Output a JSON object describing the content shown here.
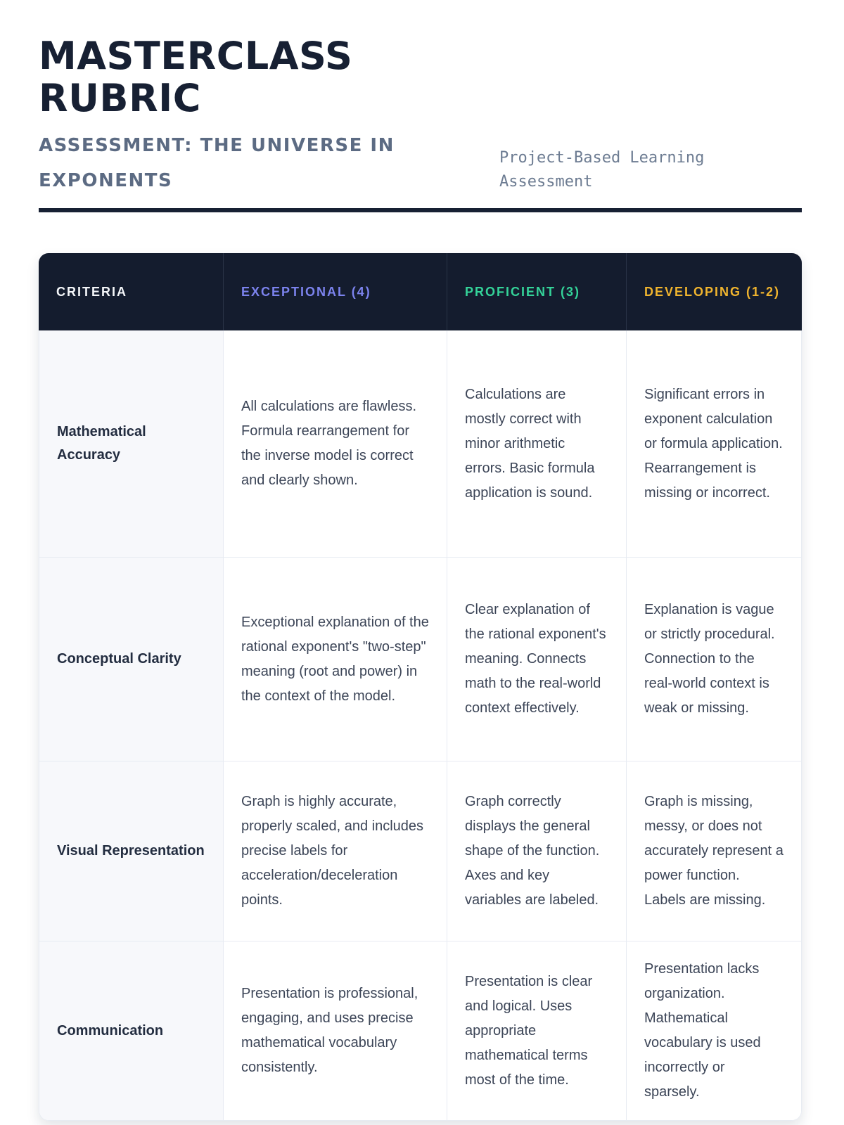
{
  "header": {
    "title": "MASTERCLASS RUBRIC",
    "subtitle": "ASSESSMENT: THE UNIVERSE IN EXPONENTS",
    "badge": "Project-Based Learning Assessment"
  },
  "colors": {
    "header_bg": "#141c2e",
    "criteria_header_text": "#f4f6f9",
    "exceptional_accent": "#7c83ee",
    "proficient_accent": "#34d399",
    "developing_accent": "#f0b42e",
    "title_text": "#172033",
    "subtitle_text": "#5c6b83",
    "body_text": "#3c4557",
    "criteria_column_bg": "#f7f8fb",
    "grid_line": "#e7ebf2"
  },
  "table": {
    "columns": [
      {
        "label": "CRITERIA"
      },
      {
        "label": "EXCEPTIONAL (4)"
      },
      {
        "label": "PROFICIENT (3)"
      },
      {
        "label": "DEVELOPING (1-2)"
      }
    ],
    "rows": [
      {
        "criteria": "Mathematical Accuracy",
        "exceptional": "All calculations are flawless. Formula rearrangement for the inverse model is correct and clearly shown.",
        "proficient": "Calculations are mostly correct with minor arithmetic errors. Basic formula application is sound.",
        "developing": "Significant errors in exponent calculation or formula application. Rearrangement is missing or incorrect."
      },
      {
        "criteria": "Conceptual Clarity",
        "exceptional": "Exceptional explanation of the rational exponent's \"two-step\" meaning (root and power) in the context of the model.",
        "proficient": "Clear explanation of the rational exponent's meaning. Connects math to the real-world context effectively.",
        "developing": "Explanation is vague or strictly procedural. Connection to the real-world context is weak or missing."
      },
      {
        "criteria": "Visual Representation",
        "exceptional": "Graph is highly accurate, properly scaled, and includes precise labels for acceleration/deceleration points.",
        "proficient": "Graph correctly displays the general shape of the function. Axes and key variables are labeled.",
        "developing": "Graph is missing, messy, or does not accurately represent a power function. Labels are missing."
      },
      {
        "criteria": "Communication",
        "exceptional": "Presentation is professional, engaging, and uses precise mathematical vocabulary consistently.",
        "proficient": "Presentation is clear and logical. Uses appropriate mathematical terms most of the time.",
        "developing": "Presentation lacks organization. Mathematical vocabulary is used incorrectly or sparsely."
      }
    ]
  }
}
